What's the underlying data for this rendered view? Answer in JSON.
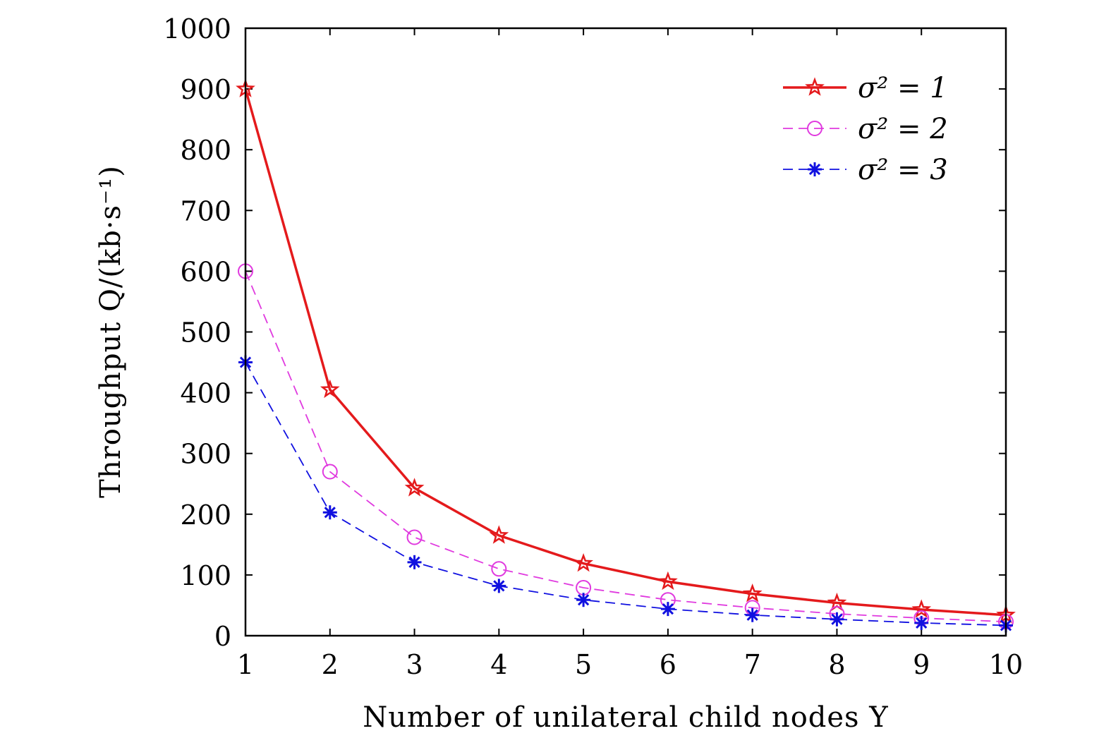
{
  "chart_data": {
    "type": "line",
    "title": "",
    "xlabel": "Number of unilateral child nodes Y",
    "ylabel": "Throughput Q/(kb·s⁻¹)",
    "xlim": [
      1,
      10
    ],
    "ylim": [
      0,
      1000
    ],
    "x_ticks": [
      "1",
      "2",
      "3",
      "4",
      "5",
      "6",
      "7",
      "8",
      "9",
      "10"
    ],
    "y_ticks": [
      "0",
      "100",
      "200",
      "300",
      "400",
      "500",
      "600",
      "700",
      "800",
      "900",
      "1000"
    ],
    "grid": false,
    "legend_position": "top-right",
    "x": [
      1,
      2,
      3,
      4,
      5,
      6,
      7,
      8,
      9,
      10
    ],
    "series": [
      {
        "name": "σ² = 1",
        "values": [
          900,
          405,
          243,
          165,
          119,
          89,
          69,
          54,
          43,
          34
        ],
        "color": "#e41a1c",
        "line_style": "solid",
        "marker": "star-icon"
      },
      {
        "name": "σ² = 2",
        "values": [
          600,
          270,
          162,
          110,
          79,
          59,
          46,
          36,
          29,
          23
        ],
        "color": "#e03adf",
        "line_style": "dashed",
        "marker": "open-circle-icon"
      },
      {
        "name": "σ² = 3",
        "values": [
          450,
          203,
          121,
          82,
          59,
          44,
          34,
          27,
          21,
          17
        ],
        "color": "#1010e0",
        "line_style": "dashed",
        "marker": "asterisk-icon"
      }
    ]
  }
}
